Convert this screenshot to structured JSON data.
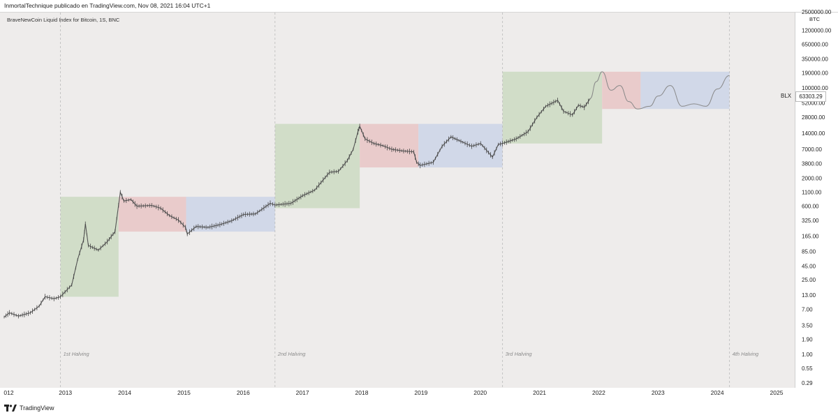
{
  "header": {
    "text": "InmortalTechnique publicado en TradingView.com, Nov 08, 2021 16:04 UTC+1"
  },
  "indicator_label": "BraveNewCoin Liquid Index for Bitcoin, 1S, BNC",
  "footer": {
    "brand": "TradingView"
  },
  "price_axis": {
    "unit": "BTC"
  },
  "last_price": {
    "series": "BLX",
    "value": "63303.29"
  },
  "colors": {
    "green": "#cfdcc6",
    "red": "#e8c9c9",
    "blue": "#cfd7e8",
    "line": "#555555",
    "projection": "#888888"
  },
  "chart_data": {
    "type": "line",
    "y_scale": "log",
    "y_ticks": [
      {
        "label": "2500000.00",
        "value": 2500000
      },
      {
        "label": "1200000.00",
        "value": 1200000
      },
      {
        "label": "650000.00",
        "value": 650000
      },
      {
        "label": "350000.00",
        "value": 350000
      },
      {
        "label": "190000.00",
        "value": 190000
      },
      {
        "label": "100000.00",
        "value": 100000
      },
      {
        "label": "52000.00",
        "value": 52000
      },
      {
        "label": "28000.00",
        "value": 28000
      },
      {
        "label": "14000.00",
        "value": 14000
      },
      {
        "label": "7000.00",
        "value": 7000
      },
      {
        "label": "3800.00",
        "value": 3800
      },
      {
        "label": "2000.00",
        "value": 2000
      },
      {
        "label": "1100.00",
        "value": 1100
      },
      {
        "label": "600.00",
        "value": 600
      },
      {
        "label": "325.00",
        "value": 325
      },
      {
        "label": "165.00",
        "value": 165
      },
      {
        "label": "85.00",
        "value": 85
      },
      {
        "label": "45.00",
        "value": 45
      },
      {
        "label": "25.00",
        "value": 25
      },
      {
        "label": "13.00",
        "value": 13
      },
      {
        "label": "7.00",
        "value": 7
      },
      {
        "label": "3.50",
        "value": 3.5
      },
      {
        "label": "1.90",
        "value": 1.9
      },
      {
        "label": "1.00",
        "value": 1
      },
      {
        "label": "0.55",
        "value": 0.55
      },
      {
        "label": "0.29",
        "value": 0.29
      }
    ],
    "x_ticks": [
      "012",
      "2013",
      "2014",
      "2015",
      "2016",
      "2017",
      "2018",
      "2019",
      "2020",
      "2021",
      "2022",
      "2023",
      "2024",
      "2025"
    ],
    "halvings": [
      {
        "label": "1st Halving",
        "x": 2012.91
      },
      {
        "label": "2nd Halving",
        "x": 2016.53
      },
      {
        "label": "3rd Halving",
        "x": 2020.37
      },
      {
        "label": "4th Halving",
        "x": 2024.2
      }
    ],
    "zones": [
      {
        "type": "green",
        "x0": 2012.91,
        "x1": 2013.89,
        "y0": 12,
        "y1": 900
      },
      {
        "type": "red",
        "x0": 2013.89,
        "x1": 2015.03,
        "y0": 200,
        "y1": 900
      },
      {
        "type": "blue",
        "x0": 2015.03,
        "x1": 2016.53,
        "y0": 200,
        "y1": 900
      },
      {
        "type": "green",
        "x0": 2016.53,
        "x1": 2017.96,
        "y0": 550,
        "y1": 21000
      },
      {
        "type": "red",
        "x0": 2017.96,
        "x1": 2018.95,
        "y0": 3200,
        "y1": 21000
      },
      {
        "type": "blue",
        "x0": 2018.95,
        "x1": 2020.37,
        "y0": 3200,
        "y1": 21000
      },
      {
        "type": "green",
        "x0": 2020.37,
        "x1": 2022.05,
        "y0": 9000,
        "y1": 200000
      },
      {
        "type": "red",
        "x0": 2022.05,
        "x1": 2022.7,
        "y0": 40000,
        "y1": 200000
      },
      {
        "type": "blue",
        "x0": 2022.7,
        "x1": 2024.2,
        "y0": 40000,
        "y1": 200000
      }
    ],
    "series": [
      {
        "values": [
          [
            2011.96,
            5
          ],
          [
            2012.05,
            6
          ],
          [
            2012.2,
            5.2
          ],
          [
            2012.4,
            6
          ],
          [
            2012.55,
            8
          ],
          [
            2012.65,
            12
          ],
          [
            2012.8,
            11
          ],
          [
            2012.91,
            12
          ],
          [
            2013.1,
            20
          ],
          [
            2013.2,
            60
          ],
          [
            2013.3,
            140
          ],
          [
            2013.33,
            280
          ],
          [
            2013.38,
            110
          ],
          [
            2013.55,
            90
          ],
          [
            2013.7,
            130
          ],
          [
            2013.83,
            200
          ],
          [
            2013.92,
            1100
          ],
          [
            2013.98,
            750
          ],
          [
            2014.1,
            800
          ],
          [
            2014.2,
            600
          ],
          [
            2014.45,
            620
          ],
          [
            2014.6,
            550
          ],
          [
            2014.75,
            400
          ],
          [
            2014.9,
            330
          ],
          [
            2015.02,
            240
          ],
          [
            2015.05,
            180
          ],
          [
            2015.2,
            250
          ],
          [
            2015.4,
            240
          ],
          [
            2015.6,
            270
          ],
          [
            2015.8,
            320
          ],
          [
            2016.0,
            420
          ],
          [
            2016.2,
            430
          ],
          [
            2016.45,
            680
          ],
          [
            2016.53,
            630
          ],
          [
            2016.8,
            680
          ],
          [
            2017.0,
            950
          ],
          [
            2017.2,
            1200
          ],
          [
            2017.45,
            2600
          ],
          [
            2017.6,
            2700
          ],
          [
            2017.75,
            4300
          ],
          [
            2017.85,
            7000
          ],
          [
            2017.93,
            15000
          ],
          [
            2017.96,
            19000
          ],
          [
            2018.05,
            11000
          ],
          [
            2018.2,
            9000
          ],
          [
            2018.35,
            8200
          ],
          [
            2018.5,
            7000
          ],
          [
            2018.7,
            6500
          ],
          [
            2018.87,
            6300
          ],
          [
            2018.92,
            4000
          ],
          [
            2018.98,
            3500
          ],
          [
            2019.2,
            4000
          ],
          [
            2019.35,
            8000
          ],
          [
            2019.5,
            12000
          ],
          [
            2019.7,
            9500
          ],
          [
            2019.85,
            8000
          ],
          [
            2020.0,
            9000
          ],
          [
            2020.2,
            5000
          ],
          [
            2020.3,
            8700
          ],
          [
            2020.37,
            9000
          ],
          [
            2020.6,
            11000
          ],
          [
            2020.8,
            15000
          ],
          [
            2020.95,
            28000
          ],
          [
            2021.1,
            45000
          ],
          [
            2021.3,
            58000
          ],
          [
            2021.4,
            36000
          ],
          [
            2021.55,
            31000
          ],
          [
            2021.65,
            47000
          ],
          [
            2021.75,
            43000
          ],
          [
            2021.85,
            63000
          ]
        ]
      }
    ],
    "projection": [
      [
        2021.85,
        63000
      ],
      [
        2021.95,
        130000
      ],
      [
        2022.05,
        200000
      ],
      [
        2022.2,
        90000
      ],
      [
        2022.35,
        110000
      ],
      [
        2022.5,
        55000
      ],
      [
        2022.65,
        40000
      ],
      [
        2022.85,
        45000
      ],
      [
        2023.0,
        70000
      ],
      [
        2023.2,
        110000
      ],
      [
        2023.4,
        45000
      ],
      [
        2023.6,
        50000
      ],
      [
        2023.8,
        45000
      ],
      [
        2024.0,
        95000
      ],
      [
        2024.2,
        170000
      ]
    ]
  }
}
